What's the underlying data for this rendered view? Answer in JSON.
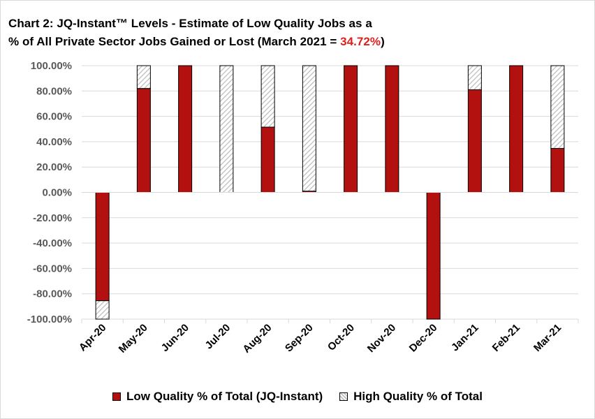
{
  "chart_data": {
    "type": "bar",
    "stacked": true,
    "title_line1": "Chart 2: JQ-Instant™ Levels - Estimate of Low Quality Jobs as a",
    "title_line2_prefix": "% of All Private Sector Jobs Gained or Lost (March 2021  = ",
    "title_highlight": "34.72%",
    "title_line2_suffix": ")",
    "categories": [
      "Apr-20",
      "May-20",
      "Jun-20",
      "Jul-20",
      "Aug-20",
      "Sep-20",
      "Oct-20",
      "Nov-20",
      "Dec-20",
      "Jan-21",
      "Feb-21",
      "Mar-21"
    ],
    "series": [
      {
        "name": "Low Quality % of Total (JQ-Instant)",
        "color": "#b31010",
        "values": [
          -85.5,
          82.0,
          100.0,
          0.0,
          51.5,
          1.0,
          100.0,
          100.0,
          -100.0,
          81.0,
          100.0,
          34.72
        ]
      },
      {
        "name": "High Quality % of Total",
        "color": "#bfbfbf",
        "pattern": "diagonal-hatch",
        "values": [
          -14.5,
          18.0,
          0.0,
          100.0,
          48.5,
          99.0,
          0.0,
          0.0,
          0.0,
          19.0,
          0.0,
          65.28
        ]
      }
    ],
    "ylim": [
      -100,
      100
    ],
    "yticks": [
      "100.00%",
      "80.00%",
      "60.00%",
      "40.00%",
      "20.00%",
      "0.00%",
      "-20.00%",
      "-40.00%",
      "-60.00%",
      "-80.00%",
      "-100.00%"
    ],
    "ytick_values": [
      100,
      80,
      60,
      40,
      20,
      0,
      -20,
      -40,
      -60,
      -80,
      -100
    ],
    "grid": true,
    "legend_position": "bottom"
  }
}
